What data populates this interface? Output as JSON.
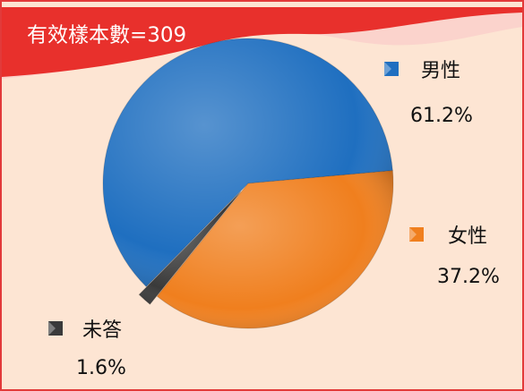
{
  "chart_data": {
    "type": "pie",
    "title": "有效樣本數=309",
    "categories": [
      "男性",
      "女性",
      "未答"
    ],
    "values": [
      61.2,
      37.2,
      1.6
    ],
    "value_labels": [
      "61.2%",
      "37.2%",
      "1.6%"
    ],
    "colors": [
      "#1f6fc0",
      "#f07f1e",
      "#3a3a3a"
    ]
  }
}
